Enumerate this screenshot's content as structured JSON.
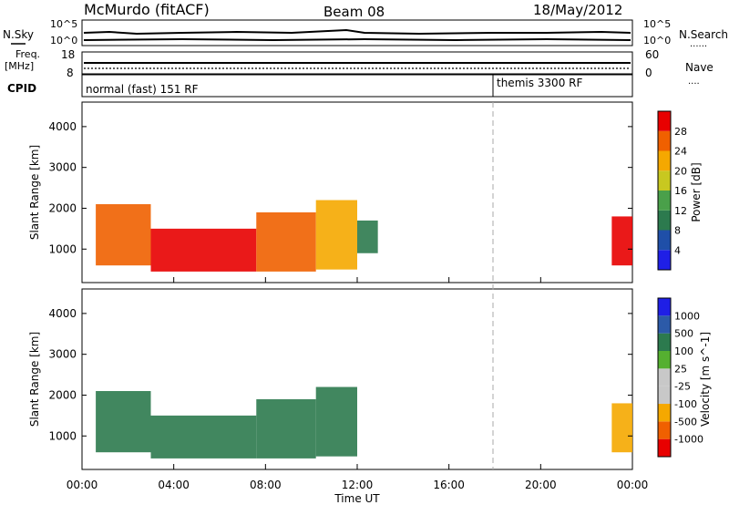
{
  "header": {
    "station": "McMurdo (fitACF)",
    "beam": "Beam 08",
    "date": "18/May/2012"
  },
  "side_labels": {
    "nsky": "N.Sky",
    "freq": "Freq.",
    "freq_unit": "[MHz]",
    "cpid": "CPID",
    "nsearch": "N.Search",
    "nave": "Nave"
  },
  "cpid_segments": [
    {
      "label": "normal (fast) 151 RF",
      "start": "00:00"
    },
    {
      "label": "themis 3300 RF",
      "start": "18:00"
    }
  ],
  "noise_panel": {
    "left_ticks": [
      "10^5",
      "10^0"
    ],
    "right_ticks": [
      "10^5",
      "10^0"
    ]
  },
  "freq_panel": {
    "left_ticks": [
      "18",
      "8"
    ],
    "right_ticks": [
      "60",
      "0"
    ]
  },
  "colors": {
    "power": [
      "#1f1fe6",
      "#1f4fa8",
      "#2c7a4e",
      "#4aa04a",
      "#c8c820",
      "#f5a800",
      "#f06000",
      "#e80000"
    ],
    "velocity": [
      "#e80000",
      "#f06000",
      "#f5a800",
      "#c8c8c8",
      "#c8c8c8",
      "#55b030",
      "#2c7a4e",
      "#2c5aa8",
      "#1f1fe6"
    ]
  },
  "chart_data": [
    {
      "type": "heatmap",
      "title": "Power",
      "ylabel": "Slant Range [km]",
      "xlabel": "Time UT",
      "x_ticks": [
        "00:00",
        "04:00",
        "08:00",
        "12:00",
        "16:00",
        "20:00",
        "00:00"
      ],
      "y_ticks": [
        1000,
        2000,
        3000,
        4000
      ],
      "ylim": [
        180,
        4600
      ],
      "xlim_hours": [
        0,
        24
      ],
      "colorbar": {
        "label": "Power [dB]",
        "ticks": [
          4,
          8,
          12,
          16,
          20,
          24,
          28
        ],
        "range": [
          0,
          32
        ]
      },
      "echo_regions": [
        {
          "t0": 0.6,
          "t1": 3.0,
          "r_min": 600,
          "r_max": 2100,
          "level": 24
        },
        {
          "t0": 3.0,
          "t1": 7.6,
          "r_min": 450,
          "r_max": 1500,
          "level": 28
        },
        {
          "t0": 7.6,
          "t1": 10.2,
          "r_min": 450,
          "r_max": 1900,
          "level": 26
        },
        {
          "t0": 10.2,
          "t1": 12.0,
          "r_min": 500,
          "r_max": 2200,
          "level": 22
        },
        {
          "t0": 12.0,
          "t1": 12.9,
          "r_min": 900,
          "r_max": 1700,
          "level": 8
        },
        {
          "t0": 23.1,
          "t1": 24.0,
          "r_min": 600,
          "r_max": 1800,
          "level": 28
        }
      ]
    },
    {
      "type": "heatmap",
      "title": "Velocity",
      "ylabel": "Slant Range [km]",
      "xlabel": "Time UT",
      "x_ticks": [
        "00:00",
        "04:00",
        "08:00",
        "12:00",
        "16:00",
        "20:00",
        "00:00"
      ],
      "y_ticks": [
        1000,
        2000,
        3000,
        4000
      ],
      "ylim": [
        180,
        4600
      ],
      "xlim_hours": [
        0,
        24
      ],
      "colorbar": {
        "label": "Velocity [m s^-1]",
        "ticks": [
          -1000,
          -500,
          -100,
          -25,
          25,
          100,
          500,
          1000
        ]
      },
      "echo_regions": [
        {
          "t0": 0.6,
          "t1": 3.0,
          "r_min": 600,
          "r_max": 2100,
          "level": 300
        },
        {
          "t0": 3.0,
          "t1": 7.6,
          "r_min": 450,
          "r_max": 1500,
          "level": 300
        },
        {
          "t0": 7.6,
          "t1": 10.2,
          "r_min": 450,
          "r_max": 1900,
          "level": 300
        },
        {
          "t0": 10.2,
          "t1": 12.0,
          "r_min": 500,
          "r_max": 2200,
          "level": 300
        },
        {
          "t0": 23.1,
          "t1": 24.0,
          "r_min": 600,
          "r_max": 1800,
          "level": -300
        }
      ]
    }
  ]
}
